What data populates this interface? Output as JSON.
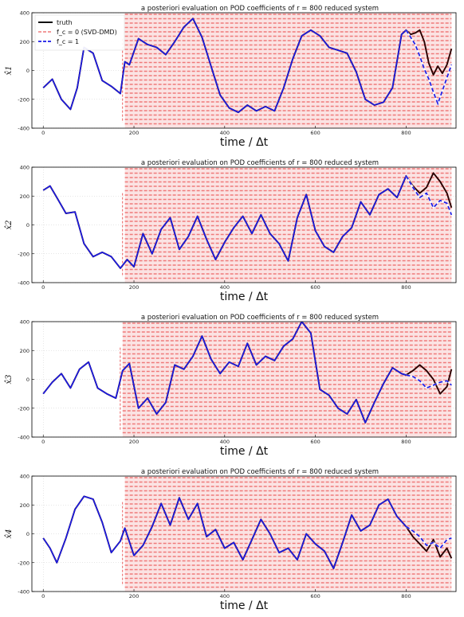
{
  "figure_title": "a posteriori evaluation on POD coefficients of r = 800 reduced system",
  "legend": {
    "location": "top-left of first panel",
    "entries": [
      {
        "label": "truth",
        "color": "#000000",
        "style": "solid"
      },
      {
        "label": "f_c = 0 (SVD-DMD)",
        "color": "#ef7a7a",
        "style": "dashed"
      },
      {
        "label": "f_c = 1",
        "color": "#1a1ae6",
        "style": "dashed"
      }
    ]
  },
  "colors": {
    "truth": "#2a0000",
    "svd_dmd": "#ef7a7a",
    "fc1": "#1a1ae6",
    "grid": "#cccccc"
  },
  "chart_data": [
    {
      "type": "line",
      "title": "a posteriori evaluation on POD coefficients of r = 800 reduced system",
      "xlabel": "time / Δt",
      "ylabel": "x̂1",
      "xlim": [
        -25,
        910
      ],
      "ylim": [
        -400,
        400
      ],
      "xticks": [
        0,
        200,
        400,
        600,
        800
      ],
      "yticks": [
        -400,
        -200,
        0,
        200,
        400
      ],
      "grid": true,
      "svd_dmd_band": {
        "x_start": 180,
        "x_end": 900,
        "y_min": -400,
        "y_max": 400
      },
      "series": [
        {
          "name": "truth",
          "x": [
            0,
            20,
            40,
            60,
            75,
            90,
            110,
            130,
            150,
            170,
            180,
            190,
            210,
            230,
            250,
            270,
            290,
            310,
            330,
            350,
            370,
            390,
            410,
            430,
            450,
            470,
            490,
            510,
            530,
            550,
            570,
            590,
            610,
            630,
            650,
            670,
            690,
            710,
            730,
            750,
            770,
            790,
            800,
            810,
            820,
            830,
            840,
            850,
            860,
            870,
            880,
            890,
            900
          ],
          "values": [
            -120,
            -60,
            -200,
            -270,
            -120,
            160,
            120,
            -70,
            -110,
            -160,
            60,
            40,
            220,
            180,
            160,
            110,
            200,
            300,
            360,
            230,
            30,
            -170,
            -260,
            -290,
            -240,
            -280,
            -250,
            -280,
            -120,
            80,
            240,
            280,
            240,
            160,
            140,
            120,
            -10,
            -200,
            -240,
            -220,
            -120,
            250,
            280,
            250,
            260,
            280,
            200,
            50,
            -30,
            30,
            -20,
            40,
            150
          ]
        },
        {
          "name": "f_c = 1",
          "x": [
            0,
            20,
            40,
            60,
            75,
            90,
            110,
            130,
            150,
            170,
            180,
            190,
            210,
            230,
            250,
            270,
            290,
            310,
            330,
            350,
            370,
            390,
            410,
            430,
            450,
            470,
            490,
            510,
            530,
            550,
            570,
            590,
            610,
            630,
            650,
            670,
            690,
            710,
            730,
            750,
            770,
            790,
            800,
            810,
            820,
            830,
            840,
            850,
            860,
            870,
            880,
            890,
            900
          ],
          "values": [
            -120,
            -60,
            -200,
            -270,
            -120,
            160,
            120,
            -70,
            -110,
            -160,
            60,
            40,
            220,
            180,
            160,
            110,
            200,
            300,
            360,
            230,
            30,
            -170,
            -260,
            -290,
            -240,
            -280,
            -250,
            -280,
            -120,
            80,
            240,
            280,
            240,
            160,
            140,
            120,
            -10,
            -200,
            -240,
            -220,
            -120,
            250,
            280,
            230,
            180,
            100,
            10,
            -60,
            -150,
            -230,
            -140,
            -50,
            40
          ]
        }
      ]
    },
    {
      "type": "line",
      "title": "a posteriori evaluation on POD coefficients of r = 800 reduced system",
      "xlabel": "time / Δt",
      "ylabel": "x̂2",
      "xlim": [
        -25,
        910
      ],
      "ylim": [
        -400,
        400
      ],
      "xticks": [
        0,
        200,
        400,
        600,
        800
      ],
      "yticks": [
        -400,
        -200,
        0,
        200,
        400
      ],
      "grid": true,
      "svd_dmd_band": {
        "x_start": 180,
        "x_end": 900,
        "y_min": -400,
        "y_max": 400
      },
      "series": [
        {
          "name": "truth",
          "x": [
            0,
            15,
            30,
            50,
            70,
            90,
            110,
            130,
            150,
            170,
            185,
            200,
            220,
            240,
            260,
            280,
            300,
            320,
            340,
            360,
            380,
            400,
            420,
            440,
            460,
            480,
            500,
            520,
            540,
            560,
            580,
            600,
            620,
            640,
            660,
            680,
            700,
            720,
            740,
            760,
            780,
            800,
            815,
            830,
            845,
            860,
            875,
            890,
            900
          ],
          "values": [
            240,
            270,
            190,
            80,
            90,
            -130,
            -220,
            -190,
            -220,
            -300,
            -240,
            -290,
            -60,
            -200,
            -30,
            50,
            -170,
            -80,
            60,
            -100,
            -240,
            -120,
            -20,
            60,
            -60,
            70,
            -60,
            -130,
            -250,
            50,
            210,
            -40,
            -150,
            -190,
            -80,
            -20,
            160,
            70,
            210,
            250,
            190,
            340,
            270,
            220,
            260,
            360,
            300,
            220,
            120
          ]
        },
        {
          "name": "f_c = 1",
          "x": [
            0,
            15,
            30,
            50,
            70,
            90,
            110,
            130,
            150,
            170,
            185,
            200,
            220,
            240,
            260,
            280,
            300,
            320,
            340,
            360,
            380,
            400,
            420,
            440,
            460,
            480,
            500,
            520,
            540,
            560,
            580,
            600,
            620,
            640,
            660,
            680,
            700,
            720,
            740,
            760,
            780,
            800,
            815,
            830,
            845,
            860,
            875,
            890,
            900
          ],
          "values": [
            240,
            270,
            190,
            80,
            90,
            -130,
            -220,
            -190,
            -220,
            -300,
            -240,
            -290,
            -60,
            -200,
            -30,
            50,
            -170,
            -80,
            60,
            -100,
            -240,
            -120,
            -20,
            60,
            -60,
            70,
            -60,
            -130,
            -250,
            50,
            210,
            -40,
            -150,
            -190,
            -80,
            -20,
            160,
            70,
            210,
            250,
            190,
            340,
            260,
            190,
            220,
            120,
            170,
            150,
            70
          ]
        }
      ]
    },
    {
      "type": "line",
      "title": "a posteriori evaluation on POD coefficients of r = 800 reduced system",
      "xlabel": "time / Δt",
      "ylabel": "x̂3",
      "xlim": [
        -25,
        910
      ],
      "ylim": [
        -400,
        400
      ],
      "xticks": [
        0,
        200,
        400,
        600,
        800
      ],
      "yticks": [
        -400,
        -200,
        0,
        200,
        400
      ],
      "grid": true,
      "svd_dmd_band": {
        "x_start": 175,
        "x_end": 900,
        "y_min": -400,
        "y_max": 400
      },
      "series": [
        {
          "name": "truth",
          "x": [
            0,
            20,
            40,
            60,
            80,
            100,
            120,
            140,
            160,
            175,
            190,
            210,
            230,
            250,
            270,
            290,
            310,
            330,
            350,
            370,
            390,
            410,
            430,
            450,
            470,
            490,
            510,
            530,
            550,
            570,
            590,
            610,
            630,
            650,
            670,
            690,
            710,
            730,
            750,
            770,
            790,
            800,
            815,
            830,
            845,
            860,
            875,
            890,
            900
          ],
          "values": [
            -100,
            -20,
            40,
            -60,
            70,
            120,
            -60,
            -100,
            -130,
            60,
            110,
            -200,
            -130,
            -240,
            -160,
            100,
            70,
            160,
            300,
            140,
            40,
            120,
            90,
            250,
            100,
            160,
            130,
            230,
            280,
            400,
            320,
            -70,
            -110,
            -200,
            -240,
            -140,
            -300,
            -160,
            -30,
            80,
            40,
            30,
            60,
            100,
            60,
            0,
            -100,
            -50,
            70
          ]
        },
        {
          "name": "f_c = 1",
          "x": [
            0,
            20,
            40,
            60,
            80,
            100,
            120,
            140,
            160,
            175,
            190,
            210,
            230,
            250,
            270,
            290,
            310,
            330,
            350,
            370,
            390,
            410,
            430,
            450,
            470,
            490,
            510,
            530,
            550,
            570,
            590,
            610,
            630,
            650,
            670,
            690,
            710,
            730,
            750,
            770,
            790,
            800,
            815,
            830,
            845,
            860,
            875,
            890,
            900
          ],
          "values": [
            -100,
            -20,
            40,
            -60,
            70,
            120,
            -60,
            -100,
            -130,
            60,
            110,
            -200,
            -130,
            -240,
            -160,
            100,
            70,
            160,
            300,
            140,
            40,
            120,
            90,
            250,
            100,
            160,
            130,
            230,
            280,
            400,
            320,
            -70,
            -110,
            -200,
            -240,
            -140,
            -300,
            -160,
            -30,
            80,
            40,
            30,
            20,
            -10,
            -60,
            -40,
            -20,
            -10,
            -40
          ]
        }
      ]
    },
    {
      "type": "line",
      "title": "a posteriori evaluation on POD coefficients of r = 800 reduced system",
      "xlabel": "time / Δt",
      "ylabel": "x̂4",
      "xlim": [
        -25,
        910
      ],
      "ylim": [
        -400,
        400
      ],
      "xticks": [
        0,
        200,
        400,
        600,
        800
      ],
      "yticks": [
        -400,
        -200,
        0,
        200,
        400
      ],
      "grid": true,
      "svd_dmd_band": {
        "x_start": 180,
        "x_end": 900,
        "y_min": -400,
        "y_max": 400
      },
      "series": [
        {
          "name": "truth",
          "x": [
            0,
            15,
            30,
            50,
            70,
            90,
            110,
            130,
            150,
            170,
            180,
            200,
            220,
            240,
            260,
            280,
            300,
            320,
            340,
            360,
            380,
            400,
            420,
            440,
            460,
            480,
            500,
            520,
            540,
            560,
            580,
            600,
            620,
            640,
            660,
            680,
            700,
            720,
            740,
            760,
            780,
            800,
            815,
            830,
            845,
            860,
            875,
            890,
            900
          ],
          "values": [
            -30,
            -100,
            -200,
            -30,
            170,
            260,
            240,
            80,
            -130,
            -50,
            40,
            -150,
            -80,
            50,
            210,
            60,
            250,
            100,
            210,
            -20,
            30,
            -100,
            -60,
            -180,
            -40,
            100,
            0,
            -130,
            -100,
            -180,
            0,
            -70,
            -120,
            -240,
            -60,
            130,
            20,
            60,
            200,
            240,
            120,
            50,
            -20,
            -70,
            -120,
            -40,
            -160,
            -100,
            -170
          ]
        },
        {
          "name": "f_c = 1",
          "x": [
            0,
            15,
            30,
            50,
            70,
            90,
            110,
            130,
            150,
            170,
            180,
            200,
            220,
            240,
            260,
            280,
            300,
            320,
            340,
            360,
            380,
            400,
            420,
            440,
            460,
            480,
            500,
            520,
            540,
            560,
            580,
            600,
            620,
            640,
            660,
            680,
            700,
            720,
            740,
            760,
            780,
            800,
            815,
            830,
            845,
            860,
            875,
            890,
            900
          ],
          "values": [
            -30,
            -100,
            -200,
            -30,
            170,
            260,
            240,
            80,
            -130,
            -50,
            40,
            -150,
            -80,
            50,
            210,
            60,
            250,
            100,
            210,
            -20,
            30,
            -100,
            -60,
            -180,
            -40,
            100,
            0,
            -130,
            -100,
            -180,
            0,
            -70,
            -120,
            -240,
            -60,
            130,
            20,
            60,
            200,
            240,
            120,
            50,
            20,
            -20,
            -80,
            -60,
            -100,
            -40,
            -30
          ]
        }
      ]
    }
  ]
}
